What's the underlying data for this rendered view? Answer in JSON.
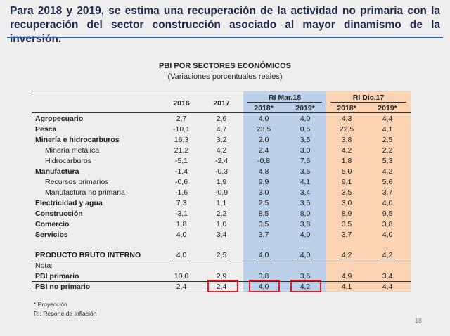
{
  "slide": {
    "title": "Para 2018 y 2019, se estima una recuperación de la actividad no primaria con la recuperación del sector construcción asociado al mayor dinamismo de la inversión."
  },
  "table": {
    "title": "PBI POR SECTORES ECONÓMICOS",
    "subtitle": "(Variaciones porcentuales reales)",
    "headers": {
      "y2016": "2016",
      "y2017": "2017",
      "group_rimar": "RI Mar.18",
      "group_ridic": "RI Dic.17",
      "rimar_2018": "2018*",
      "rimar_2019": "2019*",
      "ridic_2018": "2018*",
      "ridic_2019": "2019*"
    },
    "rows": [
      {
        "label": "Agropecuario",
        "values": [
          "2,7",
          "2,6",
          "4,0",
          "4,0",
          "4,3",
          "4,4"
        ]
      },
      {
        "label": "Pesca",
        "values": [
          "-10,1",
          "4,7",
          "23,5",
          "0,5",
          "22,5",
          "4,1"
        ]
      },
      {
        "label": "Minería e hidrocarburos",
        "values": [
          "16,3",
          "3,2",
          "2,0",
          "3,5",
          "3,8",
          "2,5"
        ]
      },
      {
        "label": "Minería metálica",
        "values": [
          "21,2",
          "4,2",
          "2,4",
          "3,0",
          "4,2",
          "2,2"
        ]
      },
      {
        "label": "Hidrocarburos",
        "values": [
          "-5,1",
          "-2,4",
          "-0,8",
          "7,6",
          "1,8",
          "5,3"
        ]
      },
      {
        "label": "Manufactura",
        "values": [
          "-1,4",
          "-0,3",
          "4,8",
          "3,5",
          "5,0",
          "4,2"
        ]
      },
      {
        "label": "Recursos primarios",
        "values": [
          "-0,6",
          "1,9",
          "9,9",
          "4,1",
          "9,1",
          "5,6"
        ]
      },
      {
        "label": "Manufactura no primaria",
        "values": [
          "-1,6",
          "-0,9",
          "3,0",
          "3,4",
          "3,5",
          "3,7"
        ]
      },
      {
        "label": "Electricidad y agua",
        "values": [
          "7,3",
          "1,1",
          "2,5",
          "3,5",
          "3,0",
          "4,0"
        ]
      },
      {
        "label": "Construcción",
        "values": [
          "-3,1",
          "2,2",
          "8,5",
          "8,0",
          "8,9",
          "9,5"
        ]
      },
      {
        "label": "Comercio",
        "values": [
          "1,8",
          "1,0",
          "3,5",
          "3,8",
          "3,5",
          "3,8"
        ]
      },
      {
        "label": "Servicios",
        "values": [
          "4,0",
          "3,4",
          "3,7",
          "4,0",
          "3,7",
          "4,0"
        ]
      }
    ],
    "pbi_row": {
      "label": "PRODUCTO BRUTO INTERNO",
      "values": [
        "4,0",
        "2,5",
        "4,0",
        "4,0",
        "4,2",
        "4,2"
      ]
    },
    "nota_label": "Nota:",
    "pbi_primario": {
      "label": "PBI primario",
      "values": [
        "10,0",
        "2,9",
        "3,8",
        "3,6",
        "4,9",
        "3,4"
      ]
    },
    "pbi_no_primario": {
      "label": "PBI no primario",
      "values": [
        "2,4",
        "2,4",
        "4,0",
        "4,2",
        "4,1",
        "4,4"
      ]
    }
  },
  "footnotes": {
    "projection": "* Proyección",
    "ri": "RI: Reporte de Inflación"
  },
  "page_number": "18"
}
